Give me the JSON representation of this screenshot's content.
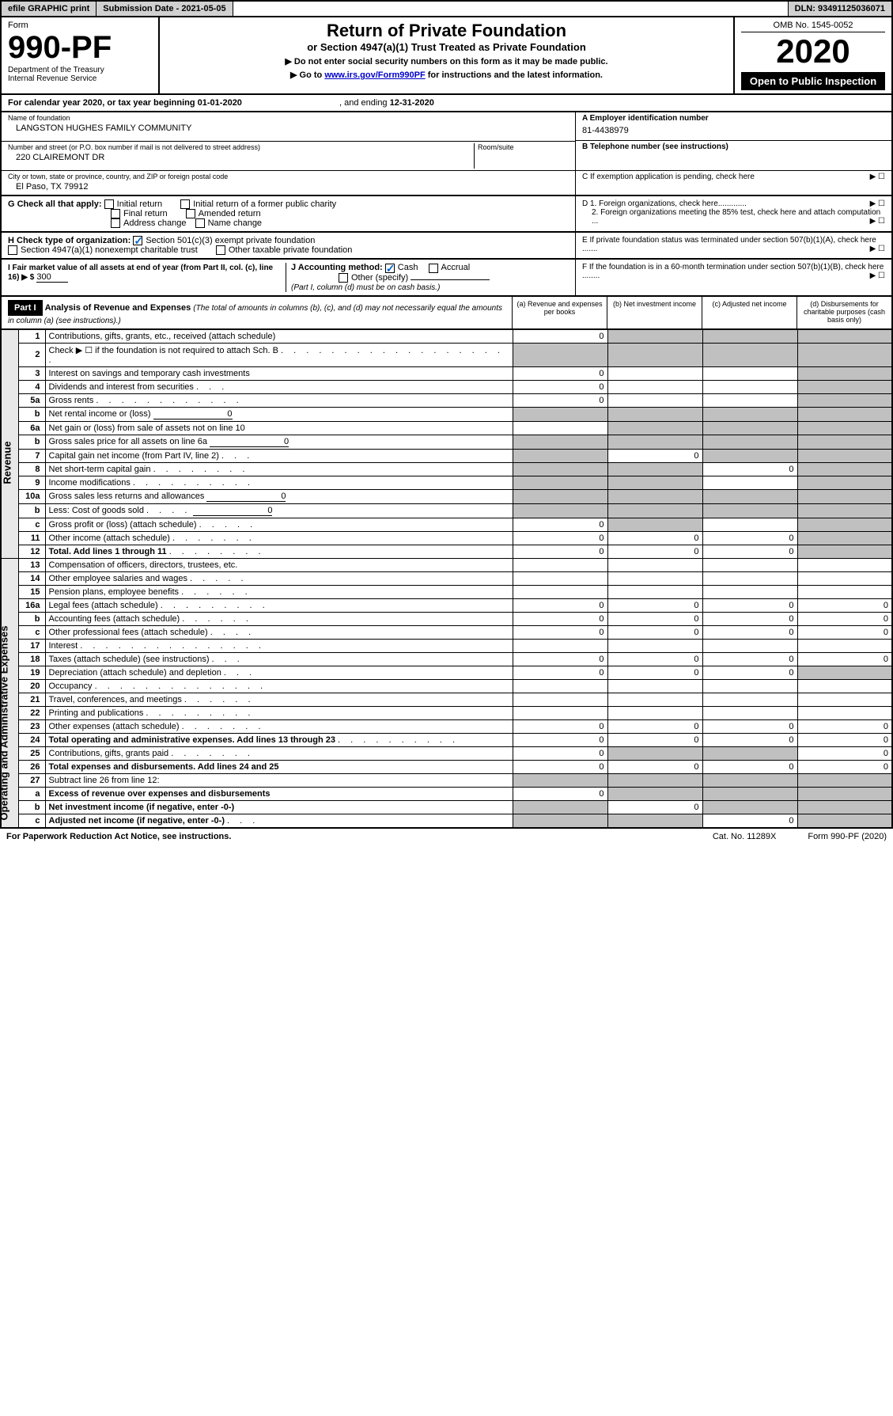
{
  "topbar": {
    "efile": "efile GRAPHIC print",
    "subdate_label": "Submission Date - 2021-05-05",
    "dln": "DLN: 93491125036071"
  },
  "header": {
    "form": "Form",
    "number": "990-PF",
    "dept": "Department of the Treasury",
    "irs": "Internal Revenue Service",
    "title": "Return of Private Foundation",
    "subtitle": "or Section 4947(a)(1) Trust Treated as Private Foundation",
    "notice1": "▶ Do not enter social security numbers on this form as it may be made public.",
    "notice2": "▶ Go to ",
    "link": "www.irs.gov/Form990PF",
    "notice3": " for instructions and the latest information.",
    "omb": "OMB No. 1545-0052",
    "year": "2020",
    "open": "Open to Public Inspection"
  },
  "cal_year": {
    "prefix": "For calendar year 2020, or tax year beginning ",
    "start": "01-01-2020",
    "mid": ", and ending ",
    "end": "12-31-2020"
  },
  "info": {
    "name_label": "Name of foundation",
    "name": "LANGSTON HUGHES FAMILY COMMUNITY",
    "addr_label": "Number and street (or P.O. box number if mail is not delivered to street address)",
    "room_label": "Room/suite",
    "addr": "220 CLAIREMONT DR",
    "city_label": "City or town, state or province, country, and ZIP or foreign postal code",
    "city": "El Paso, TX  79912",
    "ein_label": "A Employer identification number",
    "ein": "81-4438979",
    "phone_label": "B Telephone number (see instructions)",
    "pending": "C If exemption application is pending, check here",
    "d1": "D 1. Foreign organizations, check here.............",
    "d2": "2. Foreign organizations meeting the 85% test, check here and attach computation ...",
    "e": "E If private foundation status was terminated under section 507(b)(1)(A), check here .......",
    "f": "F If the foundation is in a 60-month termination under section 507(b)(1)(B), check here ........"
  },
  "checks": {
    "g_label": "G Check all that apply:",
    "initial": "Initial return",
    "initial_former": "Initial return of a former public charity",
    "final": "Final return",
    "amended": "Amended return",
    "addr_change": "Address change",
    "name_change": "Name change",
    "h_label": "H Check type of organization:",
    "h1": "Section 501(c)(3) exempt private foundation",
    "h2": "Section 4947(a)(1) nonexempt charitable trust",
    "h3": "Other taxable private foundation",
    "i_label": "I Fair market value of all assets at end of year (from Part II, col. (c), line 16) ▶ $",
    "i_val": "300",
    "j_label": "J Accounting method:",
    "cash": "Cash",
    "accrual": "Accrual",
    "other": "Other (specify)",
    "j_note": "(Part I, column (d) must be on cash basis.)"
  },
  "part1": {
    "label": "Part I",
    "title": "Analysis of Revenue and Expenses",
    "note": "(The total of amounts in columns (b), (c), and (d) may not necessarily equal the amounts in column (a) (see instructions).)",
    "col_a": "(a)    Revenue and expenses per books",
    "col_b": "(b)   Net investment income",
    "col_c": "(c)    Adjusted net income",
    "col_d": "(d)   Disbursements for charitable purposes (cash basis only)"
  },
  "revenue_label": "Revenue",
  "expenses_label": "Operating and Administrative Expenses",
  "lines": [
    {
      "n": "1",
      "d": "Contributions, gifts, grants, etc., received (attach schedule)",
      "a": "0",
      "bg": [
        "",
        "g",
        "g",
        "g"
      ]
    },
    {
      "n": "2",
      "d": "Check ▶ ☐ if the foundation is not required to attach Sch. B",
      "dots": ". . . . . . . . . . . . . . . . . . .",
      "bg": [
        "g",
        "g",
        "g",
        "g"
      ]
    },
    {
      "n": "3",
      "d": "Interest on savings and temporary cash investments",
      "a": "0",
      "bg": [
        "",
        "",
        "",
        "g"
      ]
    },
    {
      "n": "4",
      "d": "Dividends and interest from securities",
      "dots": ". . .",
      "a": "0",
      "bg": [
        "",
        "",
        "",
        "g"
      ]
    },
    {
      "n": "5a",
      "d": "Gross rents",
      "dots": ". . . . . . . . . . . .",
      "a": "0",
      "bg": [
        "",
        "",
        "",
        "g"
      ]
    },
    {
      "n": "b",
      "d": "Net rental income or (loss)",
      "inline": "0",
      "bg": [
        "g",
        "g",
        "g",
        "g"
      ]
    },
    {
      "n": "6a",
      "d": "Net gain or (loss) from sale of assets not on line 10",
      "bg": [
        "",
        "g",
        "g",
        "g"
      ]
    },
    {
      "n": "b",
      "d": "Gross sales price for all assets on line 6a",
      "inline": "0",
      "bg": [
        "g",
        "g",
        "g",
        "g"
      ]
    },
    {
      "n": "7",
      "d": "Capital gain net income (from Part IV, line 2)",
      "dots": ". . .",
      "b": "0",
      "bg": [
        "g",
        "",
        "g",
        "g"
      ]
    },
    {
      "n": "8",
      "d": "Net short-term capital gain",
      "dots": ". . . . . . . .",
      "c": "0",
      "bg": [
        "g",
        "g",
        "",
        "g"
      ]
    },
    {
      "n": "9",
      "d": "Income modifications",
      "dots": ". . . . . . . . . .",
      "bg": [
        "g",
        "g",
        "",
        "g"
      ]
    },
    {
      "n": "10a",
      "d": "Gross sales less returns and allowances",
      "inline": "0",
      "bg": [
        "g",
        "g",
        "g",
        "g"
      ]
    },
    {
      "n": "b",
      "d": "Less: Cost of goods sold",
      "dots": ". . . .",
      "inline": "0",
      "bg": [
        "g",
        "g",
        "g",
        "g"
      ]
    },
    {
      "n": "c",
      "d": "Gross profit or (loss) (attach schedule)",
      "dots": ". . . . .",
      "a": "0",
      "bg": [
        "",
        "g",
        "",
        "g"
      ]
    },
    {
      "n": "11",
      "d": "Other income (attach schedule)",
      "dots": ". . . . . . .",
      "a": "0",
      "b": "0",
      "c": "0",
      "bg": [
        "",
        "",
        "",
        "g"
      ]
    },
    {
      "n": "12",
      "d": "Total. Add lines 1 through 11",
      "bold": true,
      "dots": ". . . . . . . .",
      "a": "0",
      "b": "0",
      "c": "0",
      "bg": [
        "",
        "",
        "",
        "g"
      ]
    },
    {
      "n": "13",
      "d": "Compensation of officers, directors, trustees, etc.",
      "section": "exp"
    },
    {
      "n": "14",
      "d": "Other employee salaries and wages",
      "dots": ". . . . .",
      "section": "exp"
    },
    {
      "n": "15",
      "d": "Pension plans, employee benefits",
      "dots": ". . . . . .",
      "section": "exp"
    },
    {
      "n": "16a",
      "d": "Legal fees (attach schedule)",
      "dots": ". . . . . . . . .",
      "a": "0",
      "b": "0",
      "c": "0",
      "dv": "0",
      "section": "exp"
    },
    {
      "n": "b",
      "d": "Accounting fees (attach schedule)",
      "dots": ". . . . . .",
      "a": "0",
      "b": "0",
      "c": "0",
      "dv": "0",
      "section": "exp"
    },
    {
      "n": "c",
      "d": "Other professional fees (attach schedule)",
      "dots": ". . . .",
      "a": "0",
      "b": "0",
      "c": "0",
      "dv": "0",
      "section": "exp"
    },
    {
      "n": "17",
      "d": "Interest",
      "dots": ". . . . . . . . . . . . . . .",
      "section": "exp"
    },
    {
      "n": "18",
      "d": "Taxes (attach schedule) (see instructions)",
      "dots": ". . .",
      "a": "0",
      "b": "0",
      "c": "0",
      "dv": "0",
      "section": "exp"
    },
    {
      "n": "19",
      "d": "Depreciation (attach schedule) and depletion",
      "dots": ". . .",
      "a": "0",
      "b": "0",
      "c": "0",
      "bg": [
        "",
        "",
        "",
        "g"
      ],
      "section": "exp"
    },
    {
      "n": "20",
      "d": "Occupancy",
      "dots": ". . . . . . . . . . . . . .",
      "section": "exp"
    },
    {
      "n": "21",
      "d": "Travel, conferences, and meetings",
      "dots": ". . . . . .",
      "section": "exp"
    },
    {
      "n": "22",
      "d": "Printing and publications",
      "dots": ". . . . . . . . .",
      "section": "exp"
    },
    {
      "n": "23",
      "d": "Other expenses (attach schedule)",
      "dots": ". . . . . . .",
      "a": "0",
      "b": "0",
      "c": "0",
      "dv": "0",
      "section": "exp"
    },
    {
      "n": "24",
      "d": "Total operating and administrative expenses. Add lines 13 through 23",
      "bold": true,
      "dots": ". . . . . . . . . .",
      "a": "0",
      "b": "0",
      "c": "0",
      "dv": "0",
      "section": "exp"
    },
    {
      "n": "25",
      "d": "Contributions, gifts, grants paid",
      "dots": ". . . . . . .",
      "a": "0",
      "dv": "0",
      "bg": [
        "",
        "g",
        "g",
        ""
      ],
      "section": "exp"
    },
    {
      "n": "26",
      "d": "Total expenses and disbursements. Add lines 24 and 25",
      "bold": true,
      "a": "0",
      "b": "0",
      "c": "0",
      "dv": "0",
      "section": "exp"
    },
    {
      "n": "27",
      "d": "Subtract line 26 from line 12:",
      "bg": [
        "g",
        "g",
        "g",
        "g"
      ],
      "section": "exp"
    },
    {
      "n": "a",
      "d": "Excess of revenue over expenses and disbursements",
      "bold": true,
      "a": "0",
      "bg": [
        "",
        "g",
        "g",
        "g"
      ],
      "section": "exp"
    },
    {
      "n": "b",
      "d": "Net investment income (if negative, enter -0-)",
      "bold": true,
      "b": "0",
      "bg": [
        "g",
        "",
        "g",
        "g"
      ],
      "section": "exp"
    },
    {
      "n": "c",
      "d": "Adjusted net income (if negative, enter -0-)",
      "bold": true,
      "dots": ". . .",
      "c": "0",
      "bg": [
        "g",
        "g",
        "",
        "g"
      ],
      "section": "exp"
    }
  ],
  "footer": {
    "left": "For Paperwork Reduction Act Notice, see instructions.",
    "mid": "Cat. No. 11289X",
    "right": "Form 990-PF (2020)"
  }
}
